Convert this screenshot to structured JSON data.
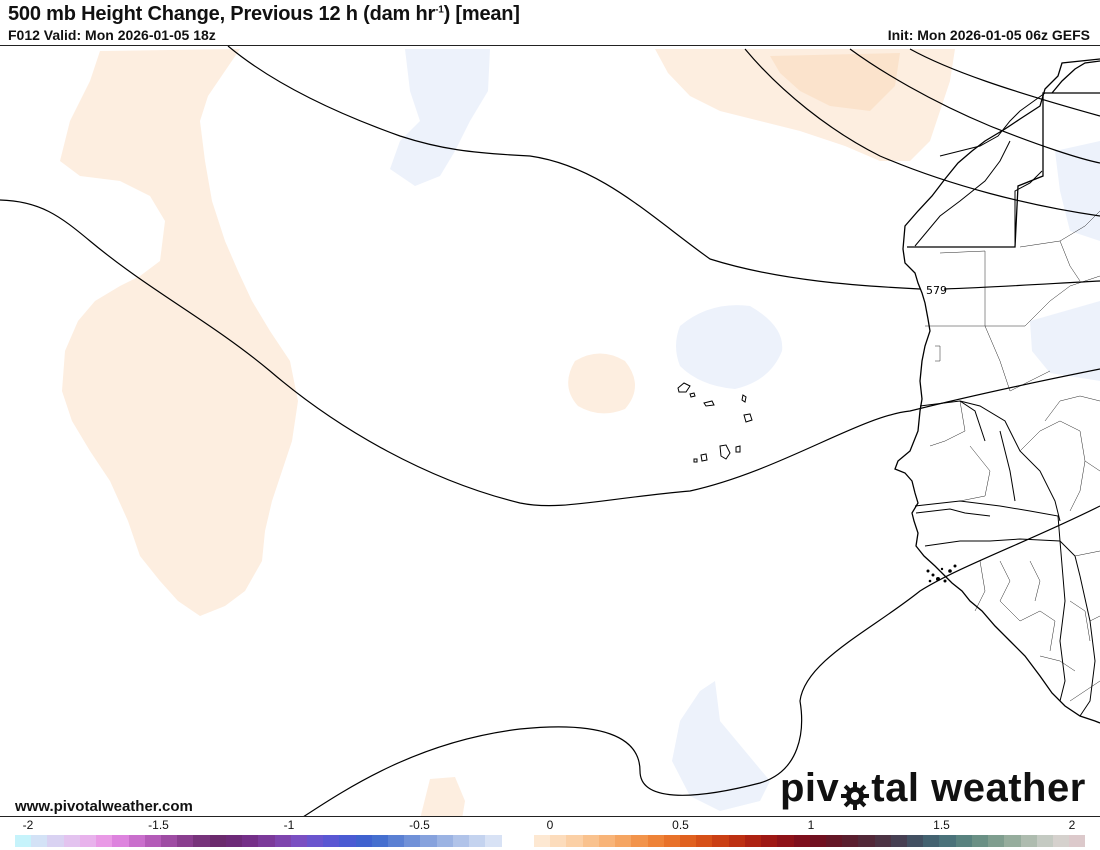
{
  "header": {
    "title_main": "500 mb Height Change, Previous 12 h (dam hr",
    "title_sup": "-1",
    "title_tail": ") [mean]",
    "valid": "F012 Valid: Mon 2026-01-05 18z",
    "init": "Init: Mon 2026-01-05 06z GEFS"
  },
  "map": {
    "contour_label": "579",
    "positive_fill_color": "#fdeee0",
    "negative_fill_color": "#edf2fb"
  },
  "footer": {
    "site_url": "www.pivotalweather.com",
    "brand_before": "piv",
    "brand_after": "tal weather",
    "brand_icon": "gear-icon"
  },
  "colorbar": {
    "tick_labels": [
      "-2",
      "-1.5",
      "-1",
      "-0.5",
      "0",
      "0.5",
      "1",
      "1.5",
      "2"
    ],
    "colors": [
      "#c6f3fb",
      "#d3e2f6",
      "#d9d2f2",
      "#e3c3ef",
      "#e8b2ec",
      "#e99ae6",
      "#dd83de",
      "#c96fcc",
      "#b45bb8",
      "#9e4ca3",
      "#8a3e8f",
      "#77337b",
      "#6b2a6d",
      "#6d2a78",
      "#742f88",
      "#7b3a9a",
      "#7e45ae",
      "#7a4fc2",
      "#6a55ce",
      "#5a57d3",
      "#4a5bd3",
      "#3f62cf",
      "#456fcf",
      "#5a80d3",
      "#7091d8",
      "#86a2dd",
      "#9bb3e3",
      "#b0c3e9",
      "#c4d3ef",
      "#d8e2f5",
      "#ffffff",
      "#ffffff",
      "#fde8d2",
      "#fcdcbc",
      "#fbd0a6",
      "#f9c28e",
      "#f8b478",
      "#f5a562",
      "#f2944b",
      "#ee8338",
      "#e8722a",
      "#e0611f",
      "#d65018",
      "#ca3f14",
      "#bd3012",
      "#ae2212",
      "#9e1814",
      "#8e1218",
      "#7e0f1c",
      "#701020",
      "#641626",
      "#5a1e2e",
      "#522838",
      "#4c3344",
      "#463f52",
      "#425062",
      "#436270",
      "#4a727a",
      "#58827f",
      "#6a9085",
      "#7f9e8f",
      "#96ad9d",
      "#aebcaf",
      "#c4cac2",
      "#d5d1cd",
      "#dcc9cb"
    ]
  }
}
